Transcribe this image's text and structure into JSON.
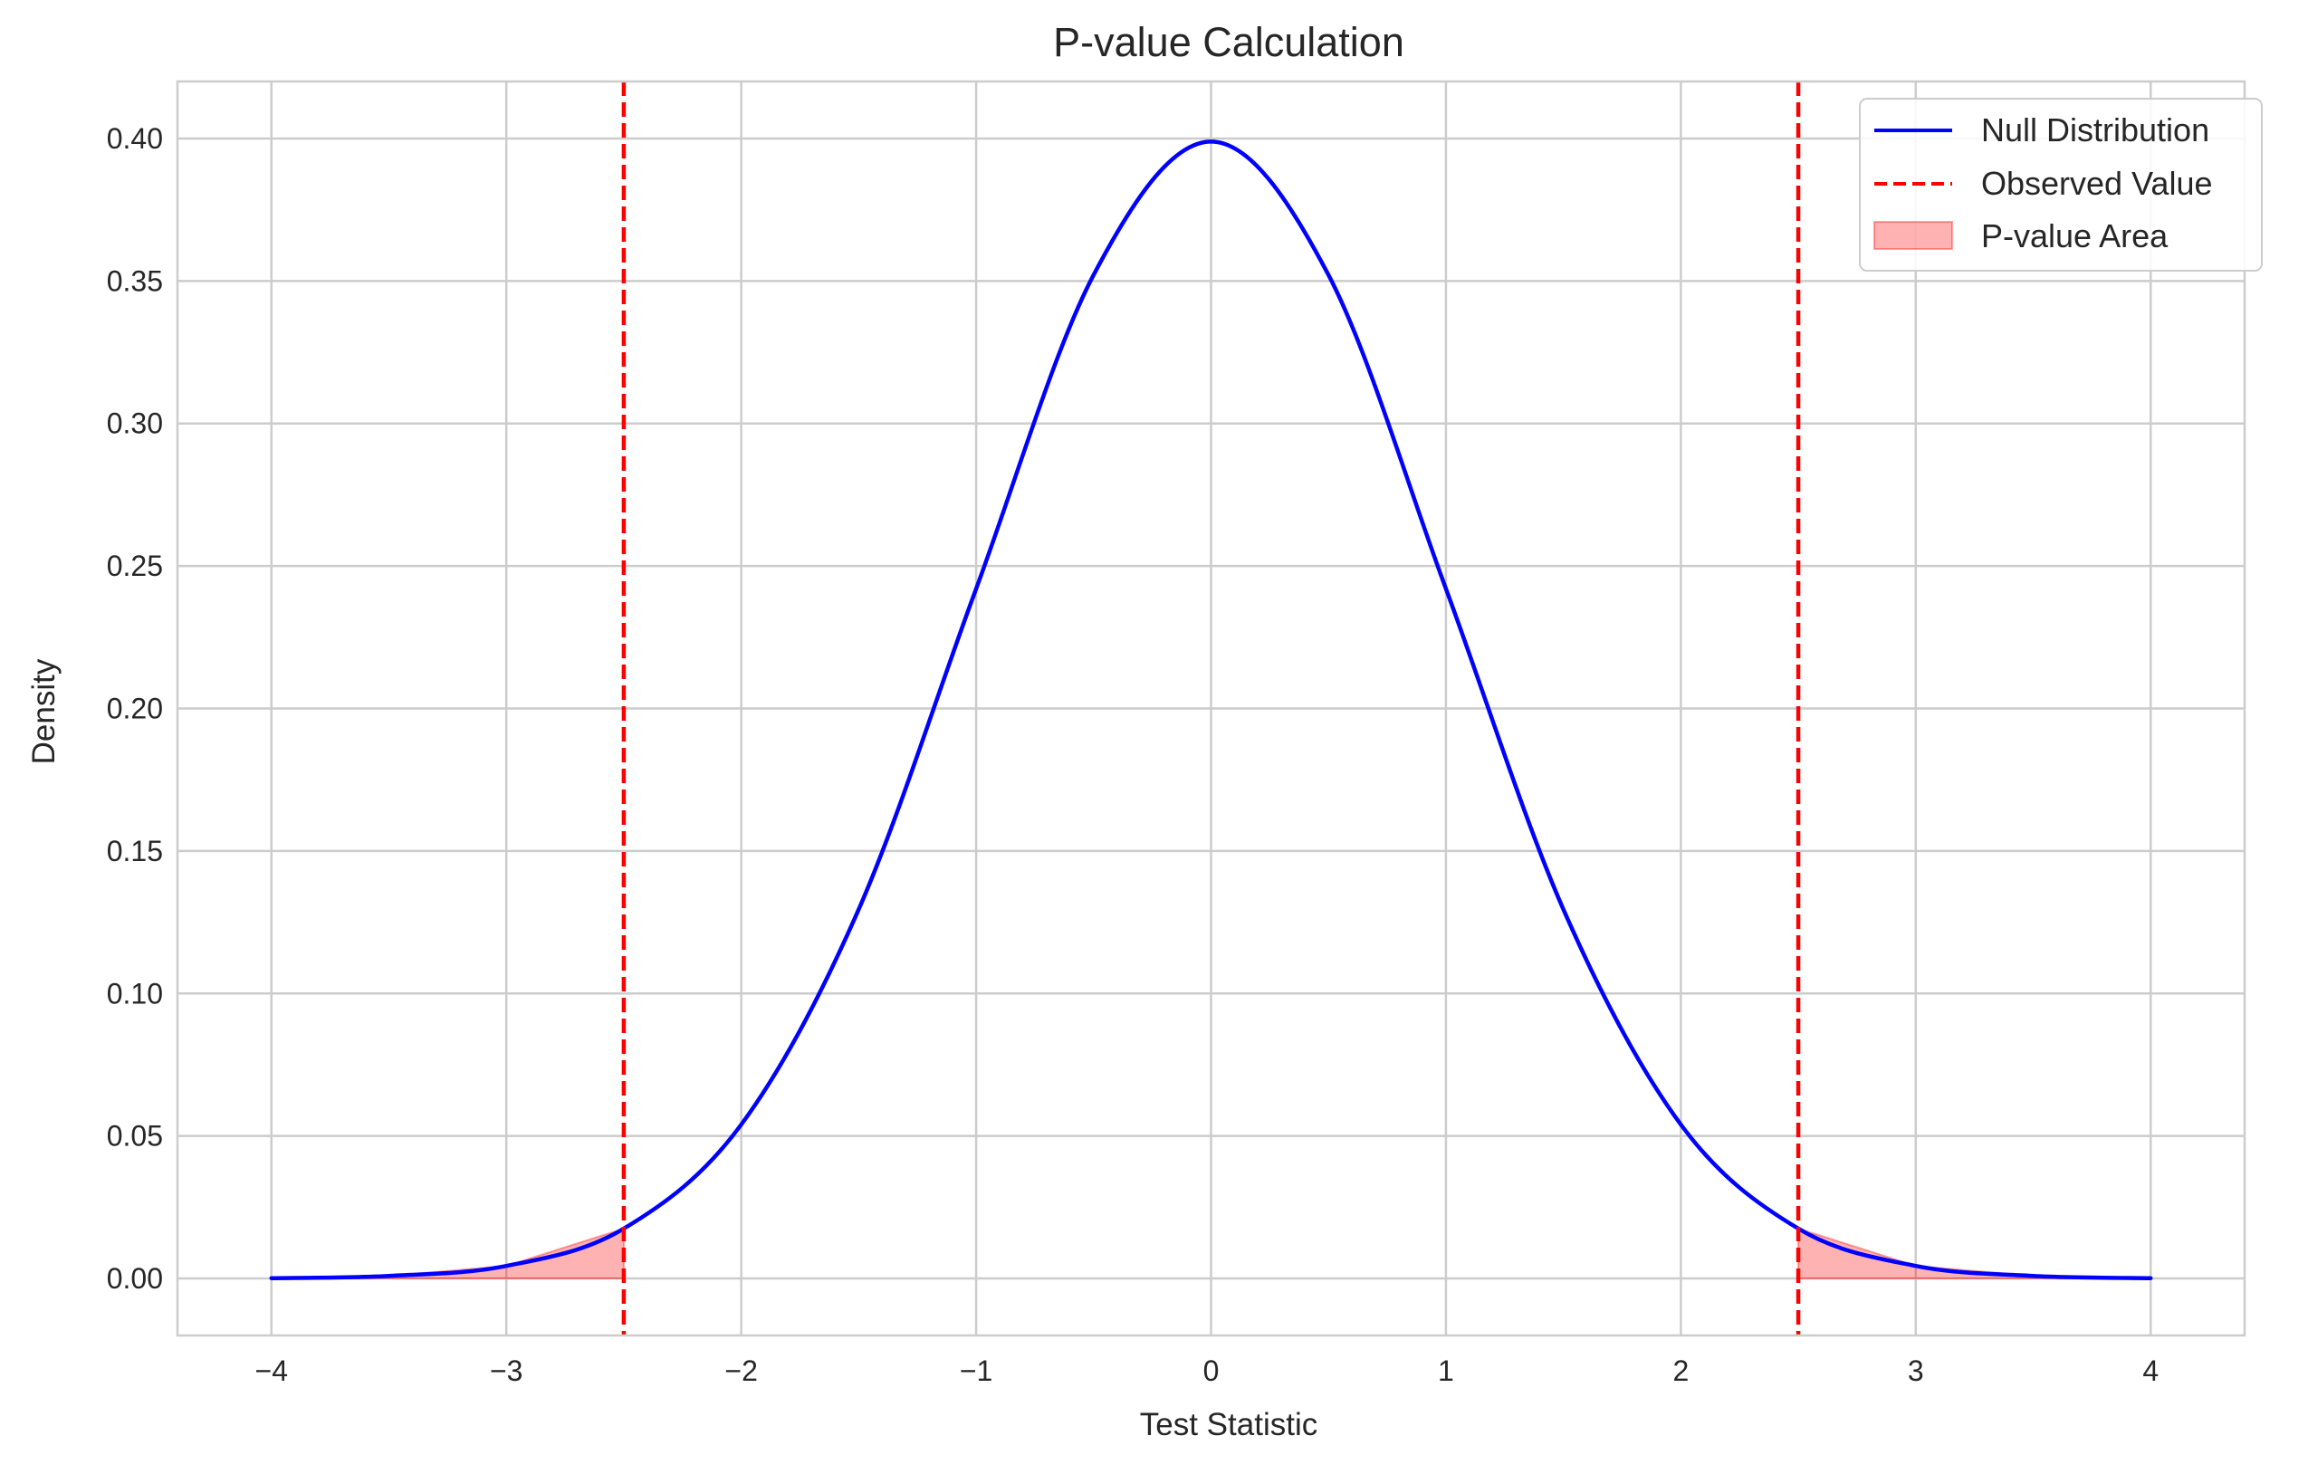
{
  "chart_data": {
    "type": "line",
    "title": "P-value Calculation",
    "xlabel": "Test Statistic",
    "ylabel": "Density",
    "xlim": [
      -4.4,
      4.4
    ],
    "ylim": [
      -0.02,
      0.42
    ],
    "grid": true,
    "legend_position": "top-right",
    "x_ticks": [
      {
        "value": -4,
        "label": "−4"
      },
      {
        "value": -3,
        "label": "−3"
      },
      {
        "value": -2,
        "label": "−2"
      },
      {
        "value": -1,
        "label": "−1"
      },
      {
        "value": 0,
        "label": "0"
      },
      {
        "value": 1,
        "label": "1"
      },
      {
        "value": 2,
        "label": "2"
      },
      {
        "value": 3,
        "label": "3"
      },
      {
        "value": 4,
        "label": "4"
      }
    ],
    "y_ticks": [
      {
        "value": 0.0,
        "label": "0.00"
      },
      {
        "value": 0.05,
        "label": "0.05"
      },
      {
        "value": 0.1,
        "label": "0.10"
      },
      {
        "value": 0.15,
        "label": "0.15"
      },
      {
        "value": 0.2,
        "label": "0.20"
      },
      {
        "value": 0.25,
        "label": "0.25"
      },
      {
        "value": 0.3,
        "label": "0.30"
      },
      {
        "value": 0.35,
        "label": "0.35"
      },
      {
        "value": 0.4,
        "label": "0.40"
      }
    ],
    "series": [
      {
        "name": "Null Distribution",
        "type": "line",
        "color": "#0000ff",
        "x": [
          -4.0,
          -3.5,
          -3.0,
          -2.5,
          -2.0,
          -1.5,
          -1.0,
          -0.5,
          0.0,
          0.5,
          1.0,
          1.5,
          2.0,
          2.5,
          3.0,
          3.5,
          4.0
        ],
        "y": [
          0.0001,
          0.0009,
          0.0044,
          0.0175,
          0.054,
          0.1295,
          0.242,
          0.3521,
          0.3989,
          0.3521,
          0.242,
          0.1295,
          0.054,
          0.0175,
          0.0044,
          0.0009,
          0.0001
        ]
      },
      {
        "name": "Observed Value",
        "type": "vline",
        "color": "#ff0000",
        "x_values": [
          -2.5,
          2.5
        ]
      },
      {
        "name": "P-value Area",
        "type": "area",
        "color": "#ff0000",
        "regions": [
          [
            -4.0,
            -2.5
          ],
          [
            2.5,
            4.0
          ]
        ]
      }
    ]
  }
}
